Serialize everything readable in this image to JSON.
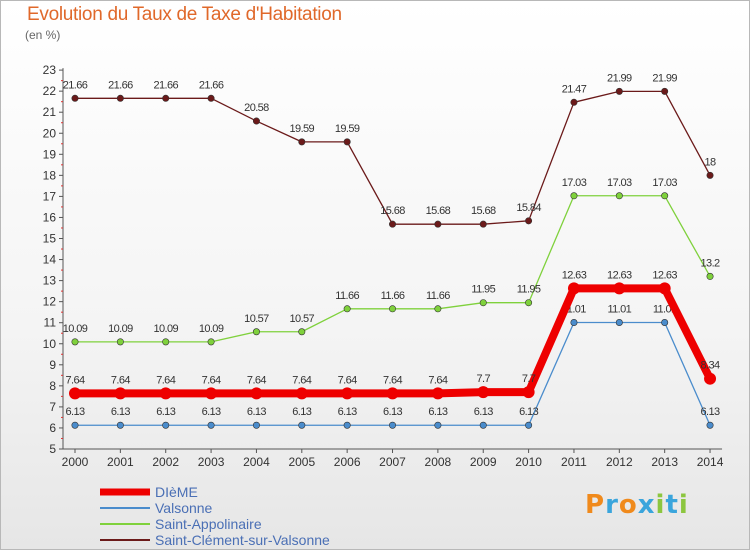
{
  "header": {
    "title": "Evolution du Taux de Taxe d'Habitation",
    "subtitle": "(en %)"
  },
  "logo": {
    "letters": [
      "P",
      "r",
      "o",
      "x",
      "i",
      "t",
      "i"
    ],
    "colors": [
      "#f08a1c",
      "#3aa5dc",
      "#f08a1c",
      "#3aa5dc",
      "#8cc63f",
      "#3aa5dc",
      "#8cc63f"
    ]
  },
  "chart_data": {
    "type": "line",
    "x": [
      "2000",
      "2001",
      "2002",
      "2003",
      "2004",
      "2005",
      "2006",
      "2007",
      "2008",
      "2009",
      "2010",
      "2011",
      "2012",
      "2013",
      "2014"
    ],
    "ylim": [
      5,
      23
    ],
    "yticks": [
      5,
      6,
      7,
      8,
      9,
      10,
      11,
      12,
      13,
      14,
      15,
      16,
      17,
      18,
      19,
      20,
      21,
      22,
      23
    ],
    "grid": false,
    "legend_position": "bottom-left",
    "series": [
      {
        "name": "Saint-Clément-sur-Valsonne",
        "color": "#6b1a1a",
        "width": 1.3,
        "values": [
          21.66,
          21.66,
          21.66,
          21.66,
          20.58,
          19.59,
          19.59,
          15.68,
          15.68,
          15.68,
          15.84,
          21.47,
          21.99,
          21.99,
          18
        ],
        "labels": [
          "21.66",
          "21.66",
          "21.66",
          "21.66",
          "20.58",
          "19.59",
          "19.59",
          "15.68",
          "15.68",
          "15.68",
          "15.84",
          "21.47",
          "21.99",
          "21.99",
          "18"
        ]
      },
      {
        "name": "Saint-Appolinaire",
        "color": "#7fd13c",
        "width": 1.3,
        "values": [
          10.09,
          10.09,
          10.09,
          10.09,
          10.57,
          10.57,
          11.66,
          11.66,
          11.66,
          11.95,
          11.95,
          17.03,
          17.03,
          17.03,
          13.2
        ],
        "labels": [
          "10.09",
          "10.09",
          "10.09",
          "10.09",
          "10.57",
          "10.57",
          "11.66",
          "11.66",
          "11.66",
          "11.95",
          "11.95",
          "17.03",
          "17.03",
          "17.03",
          "13.2"
        ]
      },
      {
        "name": "Valsonne",
        "color": "#4a8ccc",
        "width": 1.3,
        "values": [
          6.13,
          6.13,
          6.13,
          6.13,
          6.13,
          6.13,
          6.13,
          6.13,
          6.13,
          6.13,
          6.13,
          11.01,
          11.01,
          11.01,
          6.13
        ],
        "labels": [
          "6.13",
          "6.13",
          "6.13",
          "6.13",
          "6.13",
          "6.13",
          "6.13",
          "6.13",
          "6.13",
          "6.13",
          "6.13",
          "11.01",
          "11.01",
          "11.01",
          "6.13"
        ]
      },
      {
        "name": "DIèME",
        "color": "#ee0000",
        "width": 8,
        "values": [
          7.64,
          7.64,
          7.64,
          7.64,
          7.64,
          7.64,
          7.64,
          7.64,
          7.64,
          7.7,
          7.7,
          12.63,
          12.63,
          12.63,
          8.34
        ],
        "labels": [
          "7.64",
          "7.64",
          "7.64",
          "7.64",
          "7.64",
          "7.64",
          "7.64",
          "7.64",
          "7.64",
          "7.7",
          "7.7",
          "12.63",
          "12.63",
          "12.63",
          "8.34"
        ]
      }
    ],
    "legend": [
      {
        "name": "DIèME",
        "color": "#ee0000"
      },
      {
        "name": "Valsonne",
        "color": "#4a8ccc"
      },
      {
        "name": "Saint-Appolinaire",
        "color": "#7fd13c"
      },
      {
        "name": "Saint-Clément-sur-Valsonne",
        "color": "#6b1a1a"
      }
    ]
  }
}
